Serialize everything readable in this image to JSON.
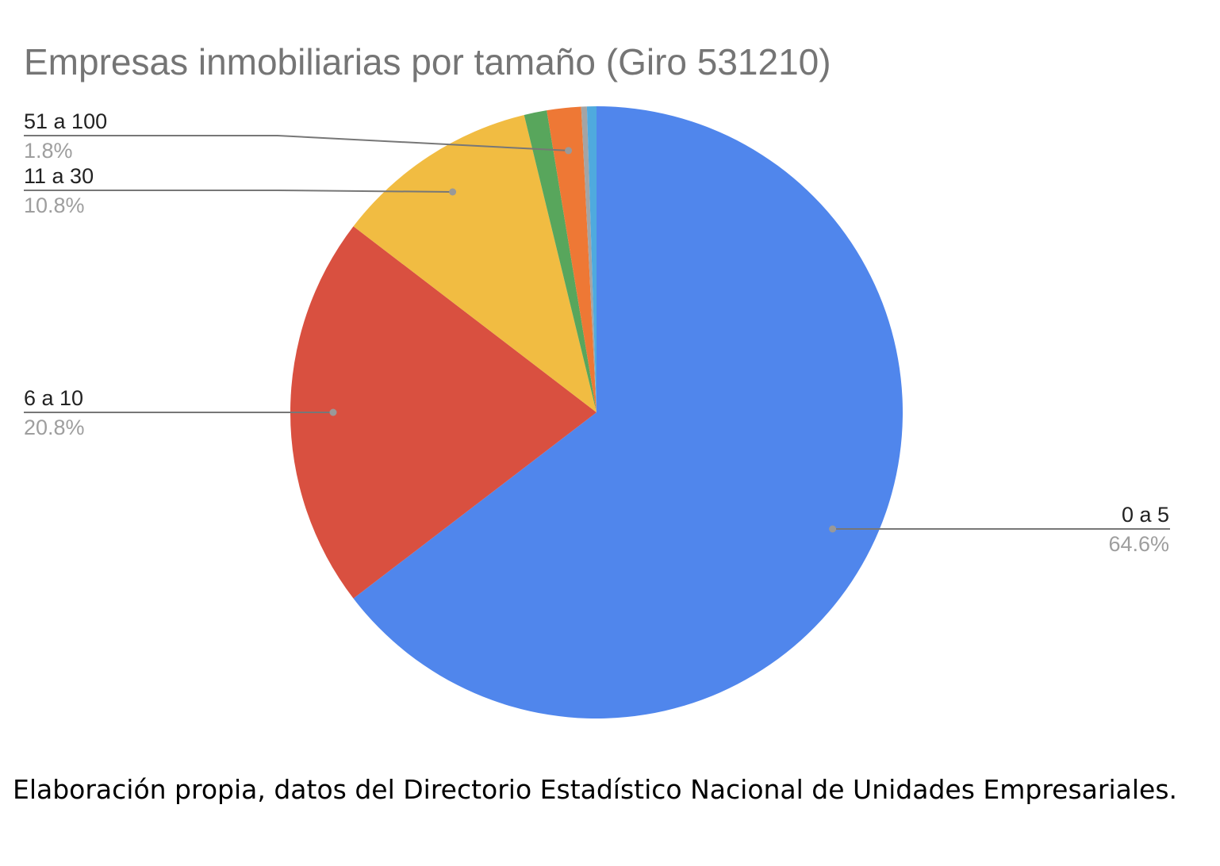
{
  "caption": "Elaboración propia, datos del Directorio Estadístico Nacional de Unidades Empresariales.",
  "chart_data": {
    "type": "pie",
    "title": "Empresas inmobiliarias por tamaño (Giro 531210)",
    "start_angle_deg": 0,
    "direction": "clockwise",
    "slices": [
      {
        "label": "0 a 5",
        "value": 64.6,
        "pct_label": "64.6%",
        "color": "#5086EC",
        "labeled": true,
        "label_side": "right"
      },
      {
        "label": "6 a 10",
        "value": 20.8,
        "pct_label": "20.8%",
        "color": "#D95040",
        "labeled": true,
        "label_side": "left"
      },
      {
        "label": "11 a 30",
        "value": 10.8,
        "pct_label": "10.8%",
        "color": "#F1BC42",
        "labeled": true,
        "label_side": "left"
      },
      {
        "label": "",
        "value": 1.2,
        "pct_label": "",
        "color": "#58A65C",
        "labeled": false
      },
      {
        "label": "51 a 100",
        "value": 1.8,
        "pct_label": "1.8%",
        "color": "#EE7835",
        "labeled": true,
        "label_side": "left"
      },
      {
        "label": "",
        "value": 0.3,
        "pct_label": "",
        "color": "#A4A4A4",
        "labeled": false
      },
      {
        "label": "",
        "value": 0.5,
        "pct_label": "",
        "color": "#4FAADE",
        "labeled": false
      }
    ]
  }
}
